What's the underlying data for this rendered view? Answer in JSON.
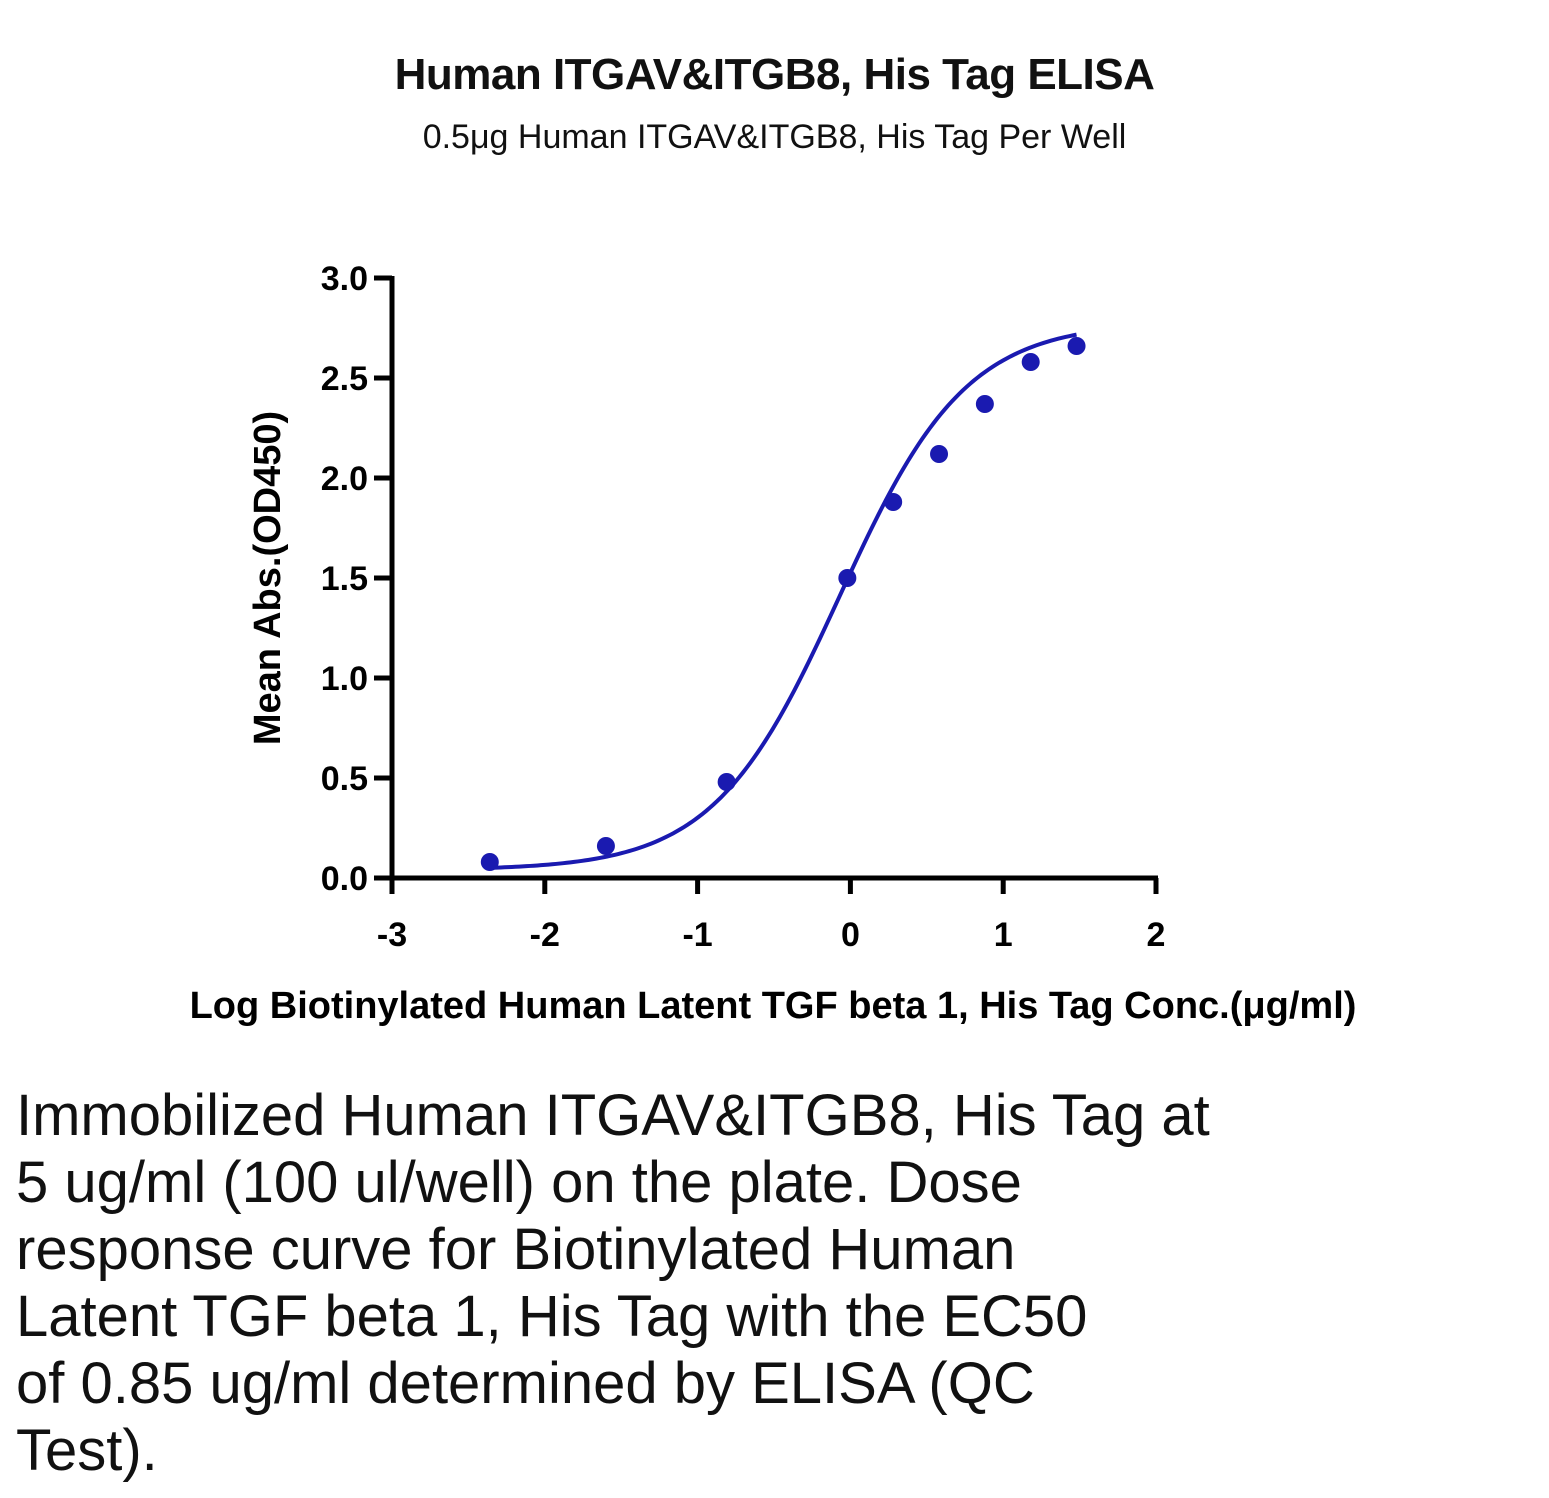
{
  "chart_data": {
    "type": "scatter",
    "title": "Human ITGAV&ITGB8, His Tag ELISA",
    "subtitle": "0.5μg Human ITGAV&ITGB8, His Tag Per Well",
    "xlabel": "Log Biotinylated Human Latent TGF beta 1, His Tag Conc.(μg/ml)",
    "ylabel": "Mean Abs.(OD450)",
    "xlim": [
      -3,
      2
    ],
    "ylim": [
      0,
      3
    ],
    "x_ticks": [
      -3,
      -2,
      -1,
      0,
      1,
      2
    ],
    "x_tick_labels": [
      "-3",
      "-2",
      "-1",
      "0",
      "1",
      "2"
    ],
    "y_ticks": [
      0,
      0.5,
      1,
      1.5,
      2,
      2.5,
      3
    ],
    "y_tick_labels": [
      "0.0",
      "0.5",
      "1.0",
      "1.5",
      "2.0",
      "2.5",
      "3.0"
    ],
    "grid": false,
    "series": [
      {
        "color": "#1a1ab0",
        "x": [
          -2.36,
          -1.6,
          -0.81,
          -0.02,
          0.28,
          0.58,
          0.88,
          1.18,
          1.48
        ],
        "y": [
          0.08,
          0.16,
          0.48,
          1.5,
          1.88,
          2.12,
          2.37,
          2.58,
          2.66
        ],
        "fit": "4PL"
      }
    ]
  },
  "caption": {
    "lines": [
      "Immobilized Human ITGAV&ITGB8, His Tag at",
      "5 ug/ml (100 ul/well) on the plate. Dose",
      "response curve for Biotinylated Human",
      "Latent TGF beta 1, His Tag with the EC50",
      "of 0.85 ug/ml determined by ELISA (QC",
      "Test)."
    ]
  }
}
